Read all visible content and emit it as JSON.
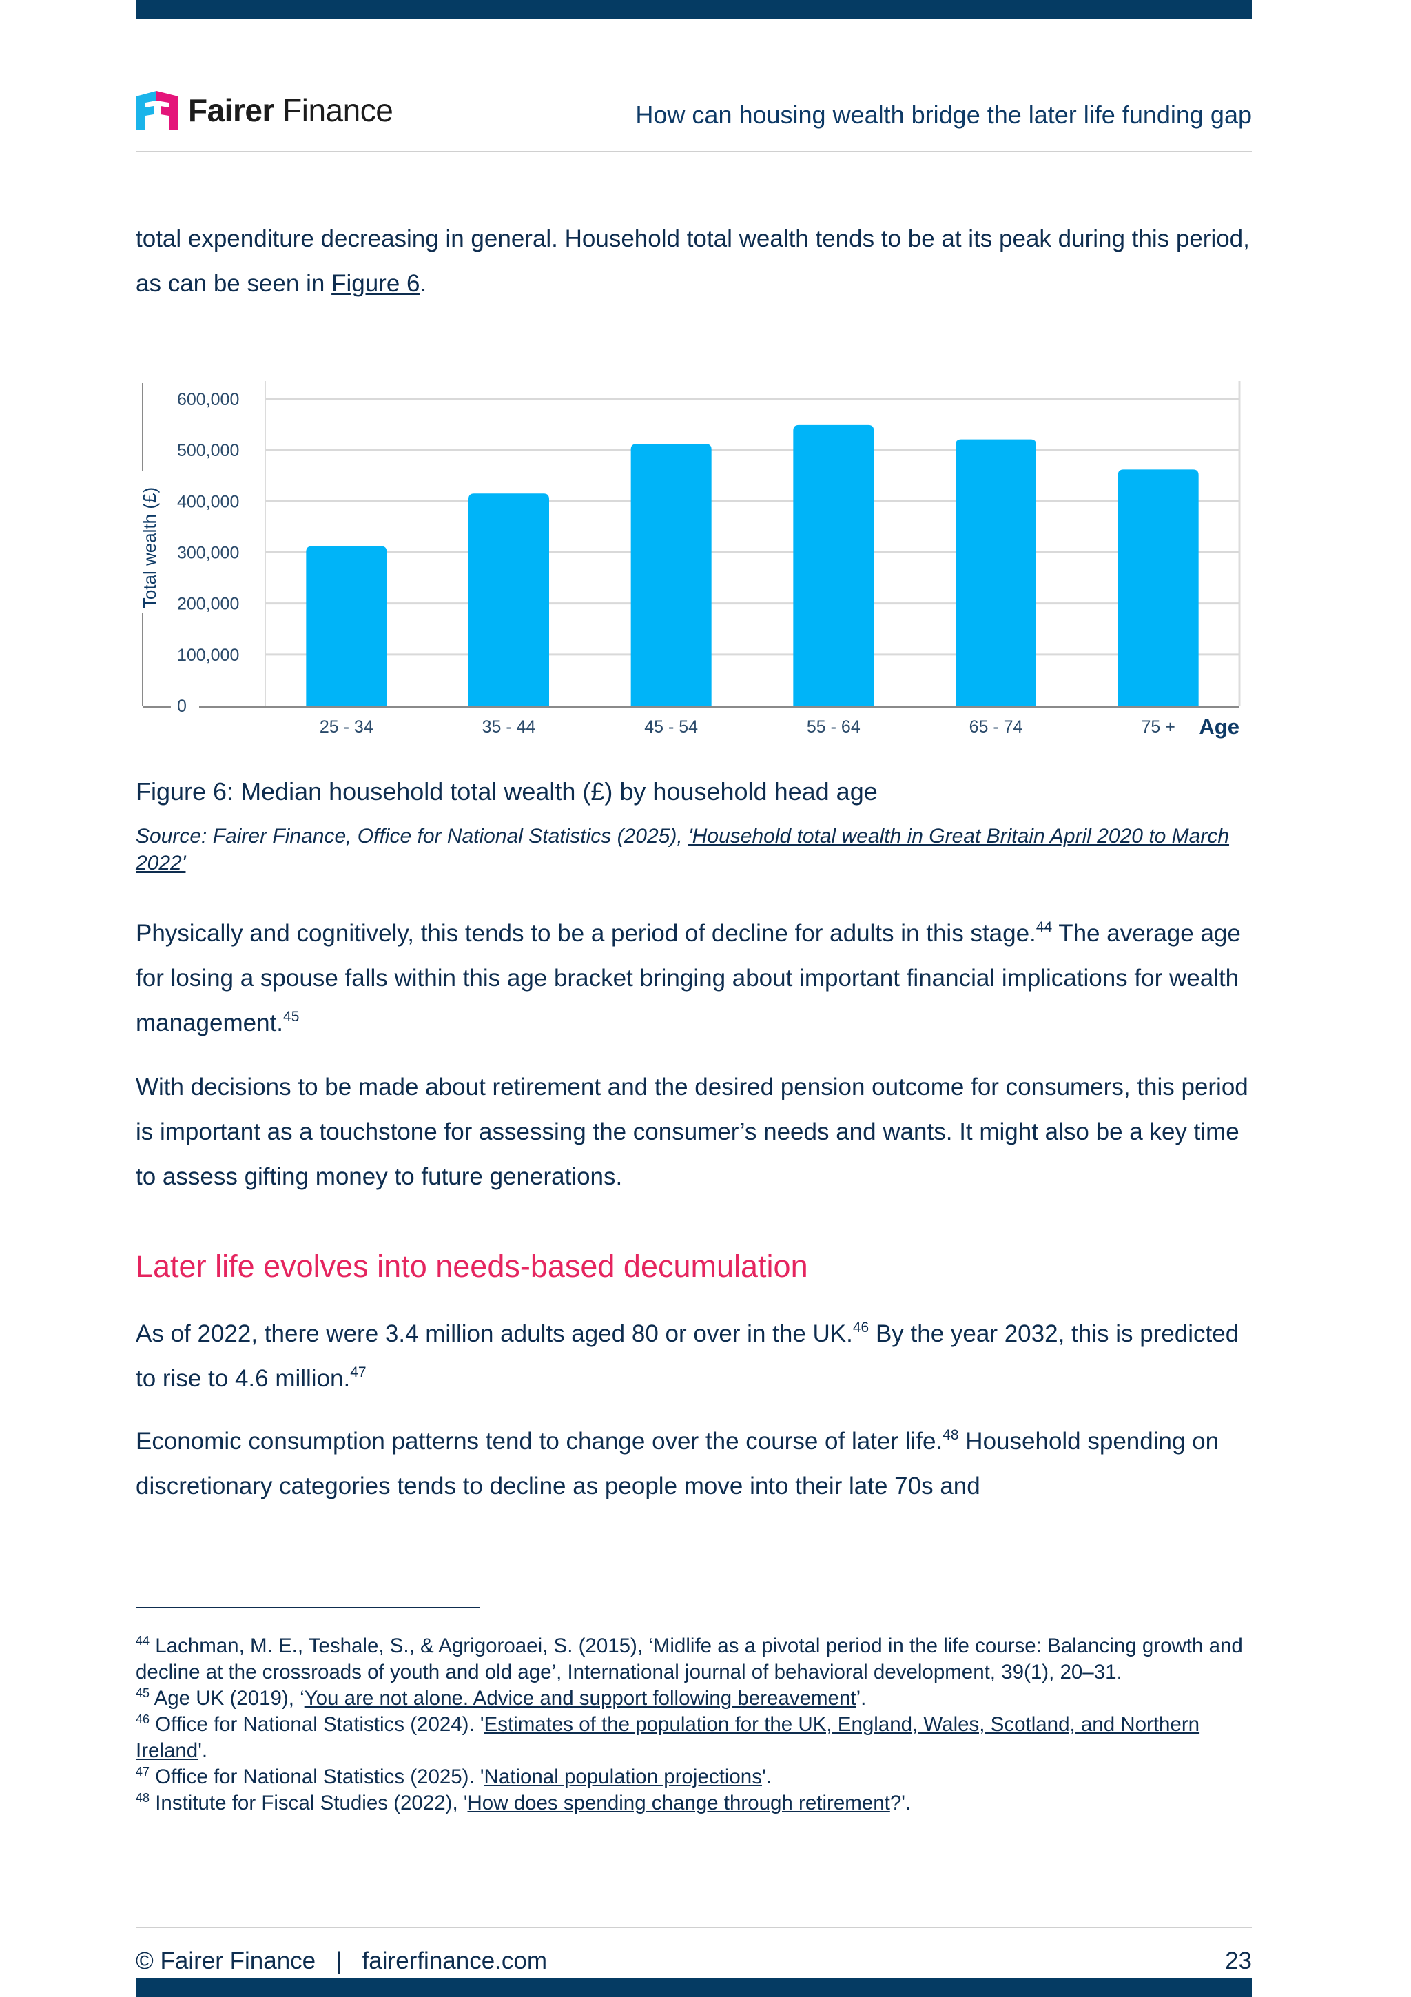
{
  "header": {
    "logo_text_bold": "Fairer",
    "logo_text_light": "Finance",
    "title": "How can housing wealth bridge the later life funding gap"
  },
  "intro": {
    "text": "total expenditure decreasing in general. Household total wealth tends to be at its peak during this period, as can be seen in ",
    "link": "Figure 6",
    "end": "."
  },
  "chart_data": {
    "type": "bar",
    "title": "",
    "xlabel": "Age",
    "ylabel": "Total wealth (£)",
    "categories": [
      "25 - 34",
      "35 - 44",
      "45 - 54",
      "55 - 64",
      "65 - 74",
      "75 +"
    ],
    "values": [
      312000,
      415000,
      512000,
      549000,
      521000,
      462000
    ],
    "ylim": [
      0,
      600000
    ],
    "yticks": [
      "0",
      "100,000",
      "200,000",
      "300,000",
      "400,000",
      "500,000",
      "600,000"
    ],
    "grid": true,
    "bar_color": "#00b4f8"
  },
  "figure": {
    "caption": "Figure 6: Median household total wealth (£) by household head age",
    "source_prefix": "Source: Fairer Finance, Office for National Statistics (2025), ",
    "source_link": "'Household total wealth in Great Britain April 2020 to March 2022'"
  },
  "para2": {
    "a": "Physically and cognitively, this tends to be a period of decline for adults in this stage.",
    "sup1": "44",
    "b": " The average age for losing a spouse falls within this age bracket bringing about important financial implications for wealth management.",
    "sup2": "45"
  },
  "para3": "With decisions to be made about retirement and the desired pension outcome for consumers, this period is important as a touchstone for assessing the consumer’s needs and wants. It might also be a key time to assess gifting money to future generations.",
  "heading": "Later life evolves into needs-based decumulation",
  "para4": {
    "a": "As of 2022, there were 3.4 million adults aged 80 or over in the UK.",
    "sup1": "46",
    "b": " By the year 2032, this is predicted to rise to 4.6 million.",
    "sup2": "47"
  },
  "para5": {
    "a": "Economic consumption patterns tend to change over the course of later life.",
    "sup1": "48",
    "b": " Household spending on discretionary categories tends to decline as people move into their late 70s and"
  },
  "footnotes": [
    {
      "num": "44",
      "pre": " Lachman, M. E., Teshale, S., & Agrigoroaei, S. (2015), ‘Midlife as a pivotal period in the life course: Balancing growth and decline at the crossroads of youth and old age’, International journal of behavioral development, 39(1), 20–31.",
      "link": "",
      "post": ""
    },
    {
      "num": "45",
      "pre": " Age UK (2019), ‘",
      "link": "You are not alone. Advice and support following bereavement",
      "post": "’."
    },
    {
      "num": "46",
      "pre": " Office for National Statistics (2024). '",
      "link": "Estimates of the population for the UK, England, Wales, Scotland, and Northern Ireland",
      "post": "'."
    },
    {
      "num": "47",
      "pre": " Office for National Statistics (2025). '",
      "link": "National population projections",
      "post": "'."
    },
    {
      "num": "48",
      "pre": " Institute for Fiscal Studies (2022), '",
      "link": "How does spending change through retirement",
      "post": "?'."
    }
  ],
  "footer": {
    "left": "© Fairer Finance   |   fairerfinance.com",
    "page": "23"
  },
  "colors": {
    "brand_navy": "#053b63",
    "heading_pink": "#e5255f",
    "logo_blue": "#1ab4ea",
    "logo_pink": "#e4157a"
  }
}
